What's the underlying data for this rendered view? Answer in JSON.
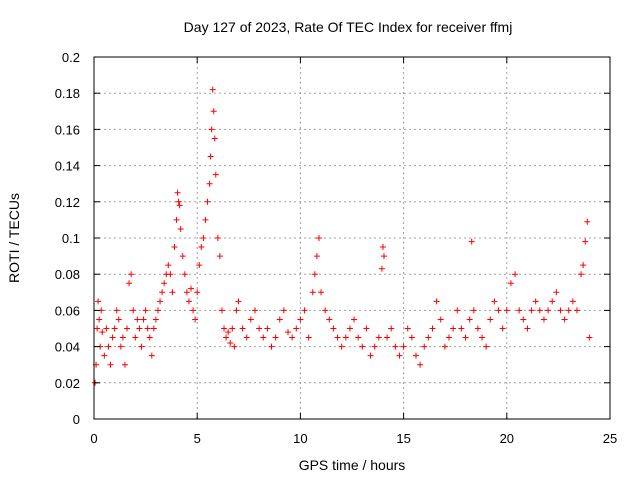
{
  "chart_data": {
    "type": "scatter",
    "title": "Day 127 of 2023, Rate Of TEC Index for receiver ffmj",
    "xlabel": "GPS time / hours",
    "ylabel": "ROTI / TECUs",
    "xlim": [
      0,
      25
    ],
    "ylim": [
      0,
      0.2
    ],
    "xticks": [
      0,
      5,
      10,
      15,
      20,
      25
    ],
    "yticks": [
      0,
      0.02,
      0.04,
      0.06,
      0.08,
      0.1,
      0.12,
      0.14,
      0.16,
      0.18,
      0.2
    ],
    "xtick_labels": [
      "0",
      "5",
      "10",
      "15",
      "20",
      "25"
    ],
    "ytick_labels": [
      "0",
      "0.02",
      "0.04",
      "0.06",
      "0.08",
      "0.1",
      "0.12",
      "0.14",
      "0.16",
      "0.18",
      "0.2"
    ],
    "grid": true,
    "marker": "+",
    "color": "#ff0000",
    "series": [
      {
        "name": "ROTI",
        "x": [
          0.05,
          0.1,
          0.15,
          0.2,
          0.25,
          0.3,
          0.35,
          0.4,
          0.5,
          0.6,
          0.7,
          0.8,
          0.9,
          1.0,
          1.1,
          1.2,
          1.3,
          1.4,
          1.5,
          1.6,
          1.7,
          1.8,
          1.9,
          2.0,
          2.1,
          2.2,
          2.3,
          2.4,
          2.5,
          2.6,
          2.7,
          2.8,
          2.9,
          3.0,
          3.1,
          3.2,
          3.3,
          3.4,
          3.5,
          3.6,
          3.7,
          3.8,
          3.9,
          4.0,
          4.05,
          4.1,
          4.15,
          4.2,
          4.3,
          4.4,
          4.5,
          4.6,
          4.7,
          4.8,
          4.9,
          5.0,
          5.1,
          5.2,
          5.3,
          5.4,
          5.5,
          5.6,
          5.65,
          5.7,
          5.75,
          5.8,
          5.85,
          5.9,
          6.0,
          6.1,
          6.2,
          6.3,
          6.4,
          6.5,
          6.6,
          6.7,
          6.8,
          6.9,
          7.0,
          7.2,
          7.4,
          7.6,
          7.8,
          8.0,
          8.2,
          8.4,
          8.6,
          8.8,
          9.0,
          9.2,
          9.4,
          9.6,
          9.8,
          10.0,
          10.2,
          10.4,
          10.6,
          10.7,
          10.8,
          10.9,
          11.0,
          11.2,
          11.4,
          11.6,
          11.8,
          12.0,
          12.2,
          12.4,
          12.6,
          12.8,
          13.0,
          13.2,
          13.4,
          13.6,
          13.8,
          13.95,
          14.0,
          14.05,
          14.2,
          14.4,
          14.6,
          14.8,
          15.0,
          15.2,
          15.4,
          15.6,
          15.8,
          16.0,
          16.2,
          16.4,
          16.6,
          16.8,
          17.0,
          17.2,
          17.4,
          17.6,
          17.8,
          18.0,
          18.2,
          18.3,
          18.4,
          18.6,
          18.8,
          19.0,
          19.2,
          19.4,
          19.6,
          19.8,
          20.0,
          20.2,
          20.4,
          20.6,
          20.8,
          21.0,
          21.2,
          21.4,
          21.6,
          21.8,
          22.0,
          22.2,
          22.4,
          22.6,
          22.8,
          23.0,
          23.2,
          23.4,
          23.6,
          23.7,
          23.8,
          23.9,
          24.0
        ],
        "y": [
          0.02,
          0.03,
          0.05,
          0.065,
          0.055,
          0.04,
          0.06,
          0.048,
          0.035,
          0.05,
          0.04,
          0.03,
          0.045,
          0.05,
          0.06,
          0.055,
          0.04,
          0.045,
          0.03,
          0.05,
          0.075,
          0.08,
          0.06,
          0.045,
          0.055,
          0.05,
          0.04,
          0.055,
          0.06,
          0.05,
          0.045,
          0.035,
          0.05,
          0.055,
          0.06,
          0.065,
          0.07,
          0.075,
          0.08,
          0.085,
          0.08,
          0.07,
          0.095,
          0.11,
          0.125,
          0.12,
          0.118,
          0.105,
          0.09,
          0.08,
          0.07,
          0.065,
          0.072,
          0.06,
          0.055,
          0.07,
          0.085,
          0.095,
          0.1,
          0.11,
          0.12,
          0.13,
          0.145,
          0.16,
          0.182,
          0.17,
          0.155,
          0.135,
          0.1,
          0.09,
          0.06,
          0.05,
          0.045,
          0.048,
          0.042,
          0.05,
          0.04,
          0.06,
          0.065,
          0.05,
          0.045,
          0.055,
          0.06,
          0.05,
          0.045,
          0.05,
          0.04,
          0.045,
          0.055,
          0.06,
          0.048,
          0.045,
          0.05,
          0.055,
          0.06,
          0.045,
          0.07,
          0.08,
          0.09,
          0.1,
          0.07,
          0.06,
          0.055,
          0.05,
          0.045,
          0.04,
          0.045,
          0.05,
          0.055,
          0.045,
          0.04,
          0.05,
          0.035,
          0.04,
          0.045,
          0.083,
          0.095,
          0.09,
          0.045,
          0.05,
          0.04,
          0.035,
          0.04,
          0.05,
          0.045,
          0.035,
          0.03,
          0.04,
          0.045,
          0.05,
          0.065,
          0.055,
          0.04,
          0.045,
          0.05,
          0.06,
          0.05,
          0.045,
          0.055,
          0.098,
          0.06,
          0.05,
          0.045,
          0.04,
          0.055,
          0.065,
          0.06,
          0.05,
          0.06,
          0.075,
          0.08,
          0.06,
          0.055,
          0.05,
          0.06,
          0.065,
          0.06,
          0.055,
          0.06,
          0.065,
          0.07,
          0.06,
          0.055,
          0.06,
          0.065,
          0.06,
          0.08,
          0.085,
          0.098,
          0.109,
          0.045
        ]
      }
    ]
  }
}
